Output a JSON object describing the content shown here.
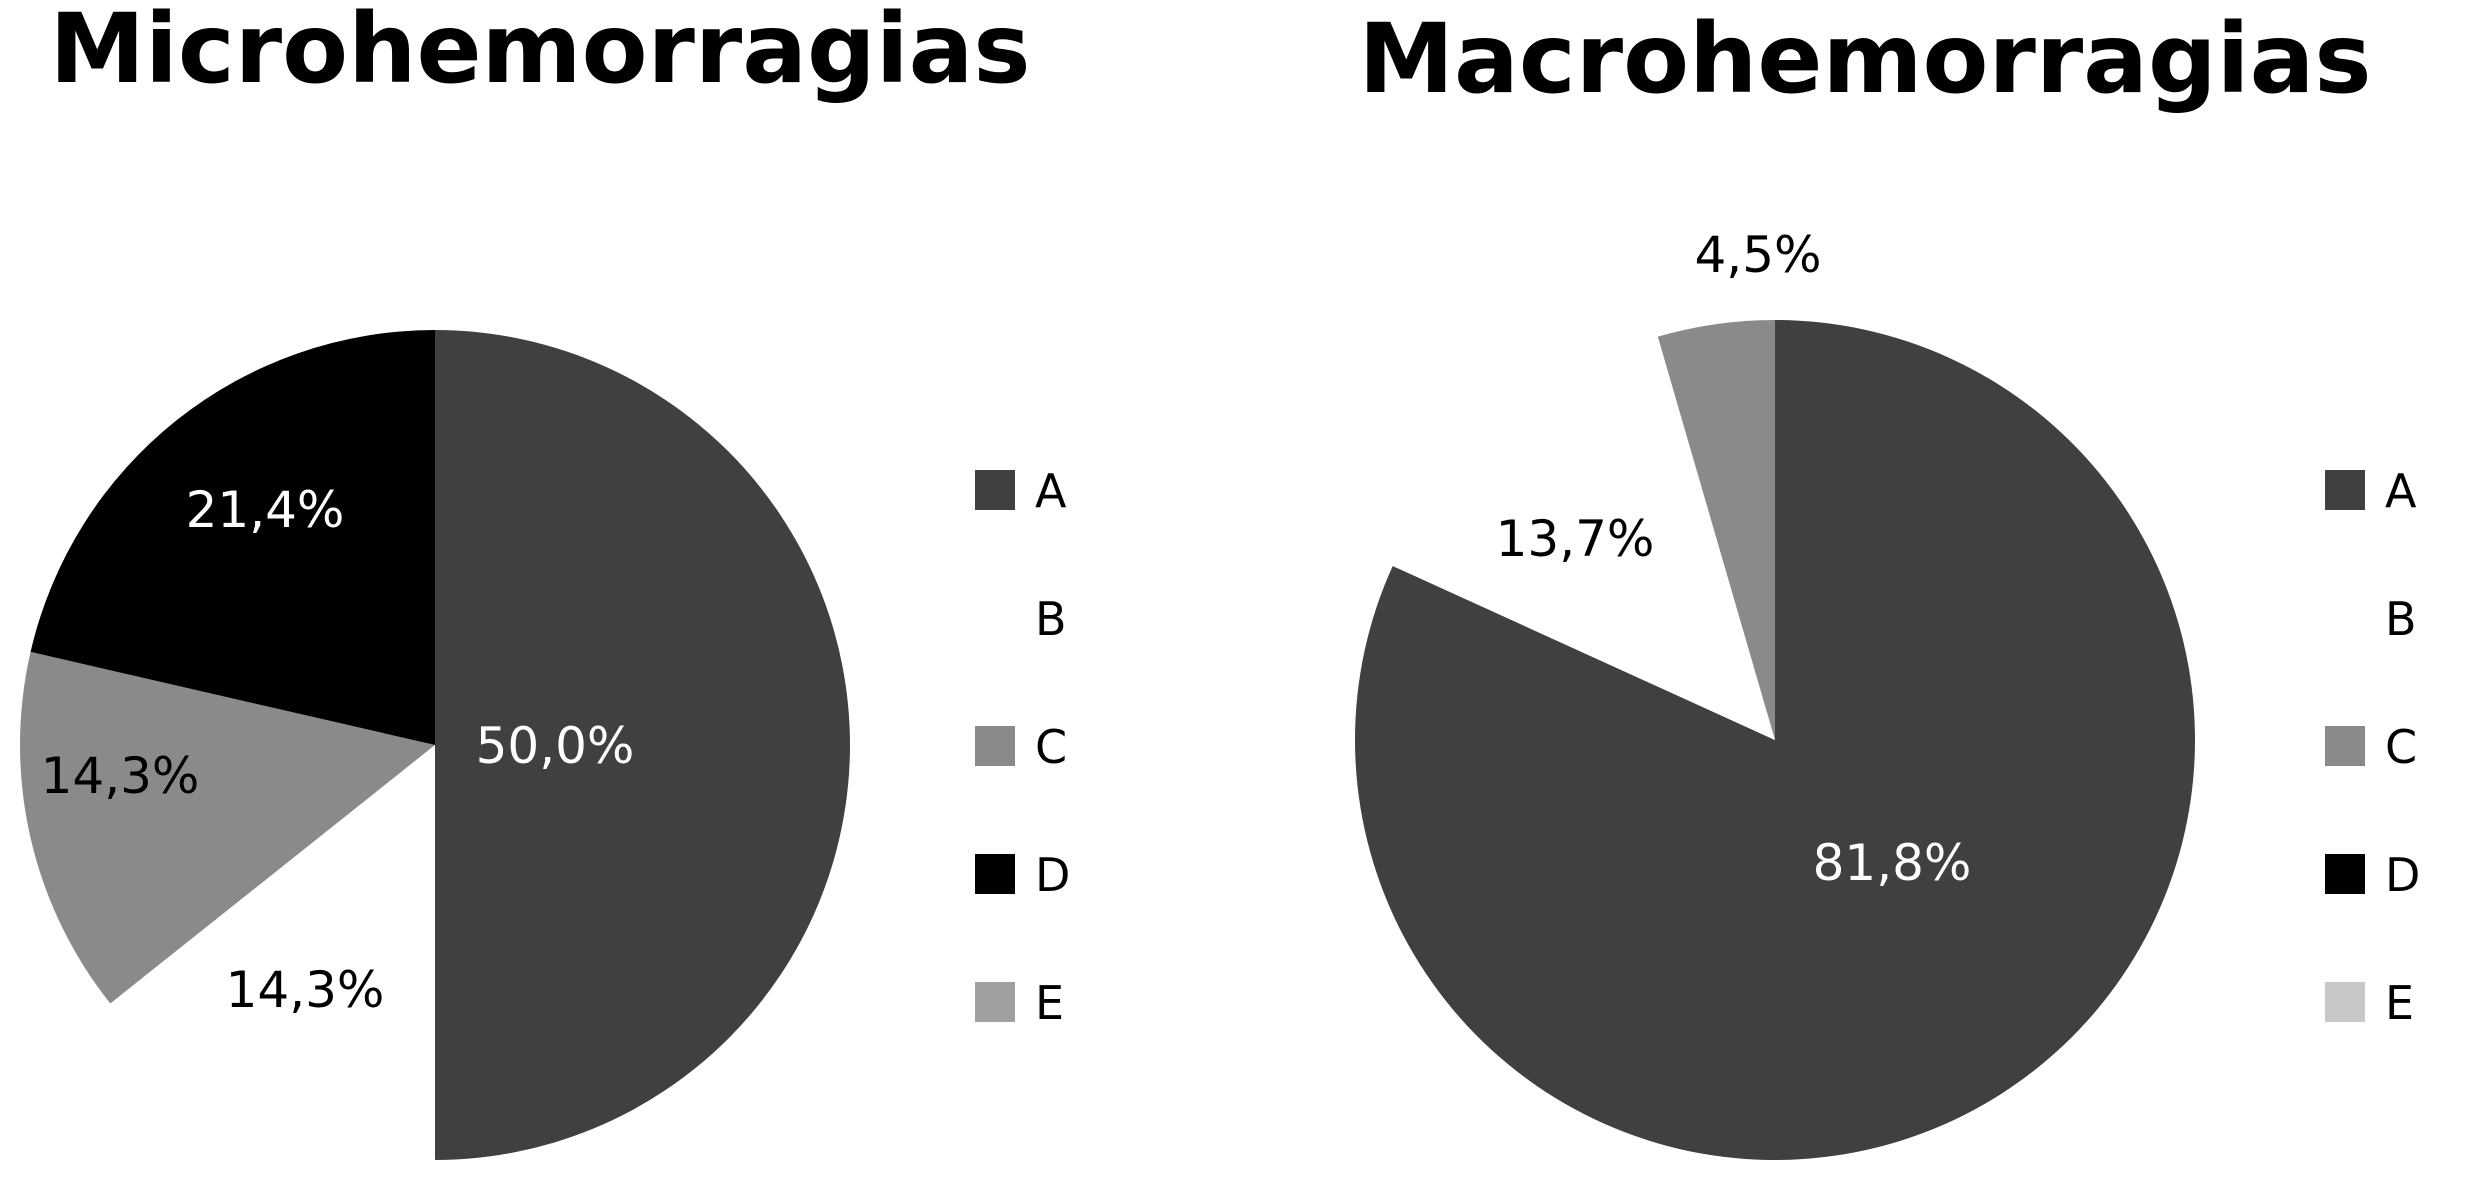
{
  "chart_data": [
    {
      "type": "pie",
      "title": "Microhemorragias",
      "categories": [
        "A",
        "B",
        "C",
        "D",
        "E"
      ],
      "values": [
        50.0,
        14.3,
        14.3,
        21.4,
        0
      ],
      "labels": [
        "50,0%",
        "14,3%",
        "14,3%",
        "21,4%",
        ""
      ],
      "colors": [
        "#404040",
        "#ffffff",
        "#8a8a8a",
        "#000000",
        "#a0a0a0"
      ],
      "legend": "right",
      "start": "top",
      "direction": "clockwise"
    },
    {
      "type": "pie",
      "title": "Macrohemorragias",
      "categories": [
        "A",
        "B",
        "C",
        "D",
        "E"
      ],
      "values": [
        81.8,
        13.7,
        4.5,
        0,
        0
      ],
      "labels": [
        "81,8%",
        "13,7%",
        "4,5%",
        "",
        ""
      ],
      "colors": [
        "#404040",
        "#ffffff",
        "#8a8a8a",
        "#000000",
        "#c8c8c8"
      ],
      "legend": "right",
      "start": "top",
      "direction": "clockwise"
    }
  ]
}
